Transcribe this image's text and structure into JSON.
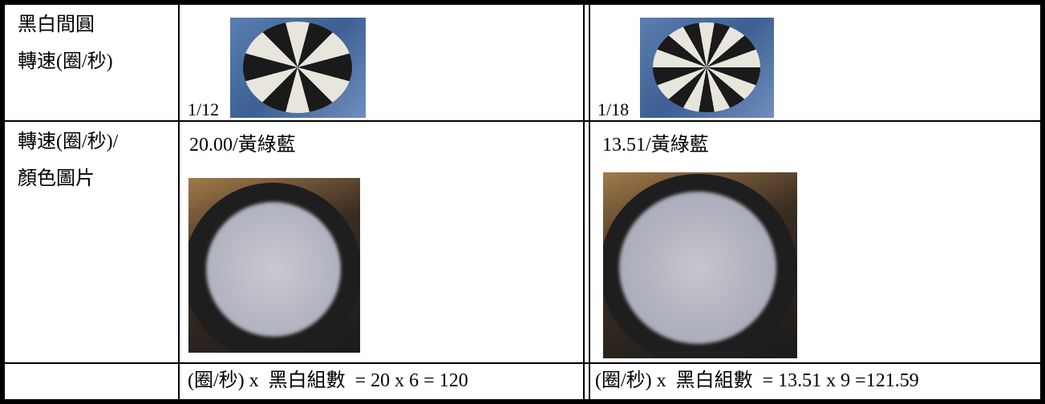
{
  "table": {
    "rows": [
      {
        "label": [
          "黑白間圓",
          "轉速(圈/秒)"
        ],
        "left": "1/12",
        "right": "1/18"
      },
      {
        "label": [
          "轉速(圈/秒)/",
          "顏色圖片"
        ],
        "left": "20.00/黃綠藍",
        "right": "13.51/黃綠藍"
      },
      {
        "left": "(圈/秒) x  黑白組數  = 20 x 6 = 120",
        "right": "(圈/秒) x  黑白組數  = 13.51 x 9 =121.59"
      }
    ]
  }
}
